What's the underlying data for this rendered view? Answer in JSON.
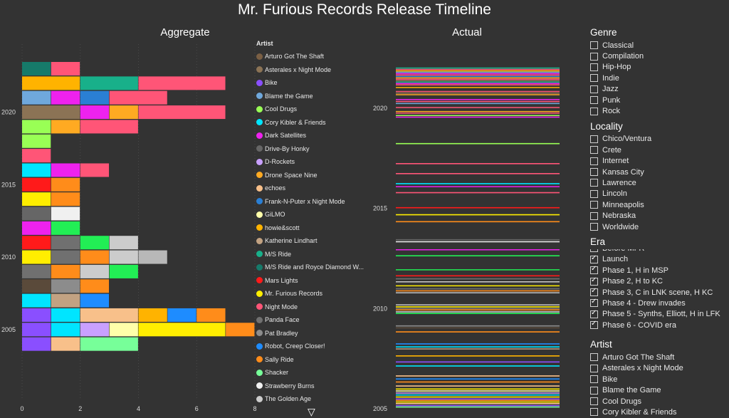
{
  "title": "Mr. Furious Records Release Timeline",
  "aggregate_title": "Aggregate",
  "actual_title": "Actual",
  "legend": {
    "title": "Artist",
    "items": [
      {
        "label": "Arturo Got The Shaft",
        "color": "#7a5f44"
      },
      {
        "label": "Asterales x Night Mode",
        "color": "#8b7355"
      },
      {
        "label": "Bike",
        "color": "#8a4fff"
      },
      {
        "label": "Blame the Game",
        "color": "#6fa8dc"
      },
      {
        "label": "Cool Drugs",
        "color": "#99ff55"
      },
      {
        "label": "Cory Kibler & Friends",
        "color": "#00e5ff"
      },
      {
        "label": "Dark Satellites",
        "color": "#ee22ee"
      },
      {
        "label": "Drive-By Honky",
        "color": "#666666"
      },
      {
        "label": "D-Rockets",
        "color": "#c9a0ff"
      },
      {
        "label": "Drone Space Nine",
        "color": "#ffaa22"
      },
      {
        "label": "echoes",
        "color": "#f8c08a"
      },
      {
        "label": "Frank-N-Puter x Night Mode",
        "color": "#2a7fd4"
      },
      {
        "label": "GiLMO",
        "color": "#ffffaa"
      },
      {
        "label": "howie&scott",
        "color": "#ffb300"
      },
      {
        "label": "Katherine Lindhart",
        "color": "#c2a282"
      },
      {
        "label": "M/S Ride",
        "color": "#18b08a"
      },
      {
        "label": "M/S Ride and Royce Diamond W...",
        "color": "#167a6a"
      },
      {
        "label": "Mars Lights",
        "color": "#ff1a1a"
      },
      {
        "label": "Mr. Furious Records",
        "color": "#ffee00"
      },
      {
        "label": "Night Mode",
        "color": "#ff5577"
      },
      {
        "label": "Panda Face",
        "color": "#707070"
      },
      {
        "label": "Pat Bradley",
        "color": "#8c8c8c"
      },
      {
        "label": "Robot, Creep Closer!",
        "color": "#1e8cff"
      },
      {
        "label": "Sally Ride",
        "color": "#ff8c1a"
      },
      {
        "label": "Shacker",
        "color": "#77ff99"
      },
      {
        "label": "Strawberry Burns",
        "color": "#f0f0f0"
      },
      {
        "label": "The Golden Age",
        "color": "#cccccc"
      }
    ]
  },
  "chart_data": [
    {
      "type": "bar",
      "title": "Aggregate",
      "orientation": "horizontal",
      "stacked": true,
      "x_ticks": [
        "0",
        "2",
        "4",
        "6",
        "8"
      ],
      "xlim": [
        0,
        8
      ],
      "y_ticks": [
        "2005",
        "2010",
        "2015",
        "2020"
      ],
      "rows": [
        {
          "segments": [
            {
              "v": 1,
              "c": "#167a6a"
            },
            {
              "v": 1,
              "c": "#ff5577"
            }
          ]
        },
        {
          "segments": [
            {
              "v": 2,
              "c": "#ffb300"
            },
            {
              "v": 2,
              "c": "#18b08a"
            },
            {
              "v": 3,
              "c": "#ff5577"
            }
          ]
        },
        {
          "segments": [
            {
              "v": 1,
              "c": "#6fa8dc"
            },
            {
              "v": 1,
              "c": "#ee22ee"
            },
            {
              "v": 1,
              "c": "#2a7fd4"
            },
            {
              "v": 2,
              "c": "#ff5577"
            }
          ]
        },
        {
          "label": "2020",
          "segments": [
            {
              "v": 2,
              "c": "#8b7355"
            },
            {
              "v": 1,
              "c": "#ee22ee"
            },
            {
              "v": 1,
              "c": "#ffaa22"
            },
            {
              "v": 3,
              "c": "#ff5577"
            }
          ]
        },
        {
          "segments": [
            {
              "v": 1,
              "c": "#99ff55"
            },
            {
              "v": 1,
              "c": "#ffaa22"
            },
            {
              "v": 2,
              "c": "#ff5577"
            }
          ]
        },
        {
          "segments": [
            {
              "v": 1,
              "c": "#99ff55"
            }
          ]
        },
        {
          "segments": [
            {
              "v": 1,
              "c": "#ff5577"
            }
          ]
        },
        {
          "segments": [
            {
              "v": 1,
              "c": "#00e5ff"
            },
            {
              "v": 1,
              "c": "#ee22ee"
            },
            {
              "v": 1,
              "c": "#ff5577"
            }
          ]
        },
        {
          "label": "2015",
          "segments": [
            {
              "v": 1,
              "c": "#ff1a1a"
            },
            {
              "v": 1,
              "c": "#ff8c1a"
            }
          ]
        },
        {
          "segments": [
            {
              "v": 1,
              "c": "#ffee00"
            },
            {
              "v": 1,
              "c": "#ff8c1a"
            }
          ]
        },
        {
          "segments": [
            {
              "v": 1,
              "c": "#666666"
            },
            {
              "v": 1,
              "c": "#f0f0f0"
            }
          ]
        },
        {
          "segments": [
            {
              "v": 1,
              "c": "#ee22ee"
            },
            {
              "v": 1,
              "c": "#22ee55"
            }
          ]
        },
        {
          "segments": [
            {
              "v": 1,
              "c": "#ff1a1a"
            },
            {
              "v": 1,
              "c": "#707070"
            },
            {
              "v": 1,
              "c": "#22ee55"
            },
            {
              "v": 1,
              "c": "#cccccc"
            }
          ]
        },
        {
          "label": "2010",
          "segments": [
            {
              "v": 1,
              "c": "#ffee00"
            },
            {
              "v": 1,
              "c": "#707070"
            },
            {
              "v": 1,
              "c": "#ff8c1a"
            },
            {
              "v": 1,
              "c": "#cccccc"
            },
            {
              "v": 1,
              "c": "#b8b8b8"
            }
          ]
        },
        {
          "segments": [
            {
              "v": 1,
              "c": "#707070"
            },
            {
              "v": 1,
              "c": "#ff8c1a"
            },
            {
              "v": 1,
              "c": "#cccccc"
            },
            {
              "v": 1,
              "c": "#22ee55"
            }
          ]
        },
        {
          "segments": [
            {
              "v": 1,
              "c": "#5a4a3a"
            },
            {
              "v": 1,
              "c": "#8c8c8c"
            },
            {
              "v": 1,
              "c": "#ff8c1a"
            }
          ]
        },
        {
          "segments": [
            {
              "v": 1,
              "c": "#00e5ff"
            },
            {
              "v": 1,
              "c": "#c2a282"
            },
            {
              "v": 1,
              "c": "#1e8cff"
            }
          ]
        },
        {
          "segments": [
            {
              "v": 1,
              "c": "#8a4fff"
            },
            {
              "v": 1,
              "c": "#00e5ff"
            },
            {
              "v": 2,
              "c": "#f8c08a"
            },
            {
              "v": 1,
              "c": "#ffb300"
            },
            {
              "v": 1,
              "c": "#1e8cff"
            },
            {
              "v": 1,
              "c": "#ff8c1a"
            }
          ]
        },
        {
          "label": "2005",
          "segments": [
            {
              "v": 1,
              "c": "#8a4fff"
            },
            {
              "v": 1,
              "c": "#00e5ff"
            },
            {
              "v": 1,
              "c": "#c9a0ff"
            },
            {
              "v": 1,
              "c": "#ffffaa"
            },
            {
              "v": 3,
              "c": "#ffee00"
            },
            {
              "v": 1,
              "c": "#ff8c1a"
            }
          ]
        },
        {
          "segments": [
            {
              "v": 1,
              "c": "#8a4fff"
            },
            {
              "v": 1,
              "c": "#f8c08a"
            },
            {
              "v": 2,
              "c": "#77ff99"
            }
          ]
        }
      ]
    },
    {
      "type": "line",
      "title": "Actual",
      "y_ticks": [
        "2005",
        "2010",
        "2015",
        "2020"
      ],
      "ylim": [
        2004.9,
        2022.2
      ],
      "releases": [
        {
          "y": 2021.97,
          "c": "#18b08a"
        },
        {
          "y": 2021.9,
          "c": "#ff5577"
        },
        {
          "y": 2021.83,
          "c": "#ffb300"
        },
        {
          "y": 2021.76,
          "c": "#6fa8dc"
        },
        {
          "y": 2021.69,
          "c": "#ee22ee"
        },
        {
          "y": 2021.62,
          "c": "#ff5577"
        },
        {
          "y": 2021.55,
          "c": "#2a7fd4"
        },
        {
          "y": 2021.48,
          "c": "#ffaa22"
        },
        {
          "y": 2021.41,
          "c": "#ff5577"
        },
        {
          "y": 2021.34,
          "c": "#8b7355"
        },
        {
          "y": 2021.27,
          "c": "#18b08a"
        },
        {
          "y": 2021.2,
          "c": "#ee22ee"
        },
        {
          "y": 2021.13,
          "c": "#ff5577"
        },
        {
          "y": 2021.0,
          "c": "#ffb300"
        },
        {
          "y": 2020.8,
          "c": "#ff5577"
        },
        {
          "y": 2020.72,
          "c": "#8b7355"
        },
        {
          "y": 2020.64,
          "c": "#ffaa22"
        },
        {
          "y": 2020.4,
          "c": "#ee22ee"
        },
        {
          "y": 2020.3,
          "c": "#ff5577"
        },
        {
          "y": 2020.2,
          "c": "#6fa8dc"
        },
        {
          "y": 2020.0,
          "c": "#ff5577"
        },
        {
          "y": 2019.8,
          "c": "#ffaa22"
        },
        {
          "y": 2019.72,
          "c": "#ff5577"
        },
        {
          "y": 2019.6,
          "c": "#99ff55"
        },
        {
          "y": 2019.52,
          "c": "#ee22ee"
        },
        {
          "y": 2018.2,
          "c": "#99ff55"
        },
        {
          "y": 2017.2,
          "c": "#ff5577"
        },
        {
          "y": 2016.7,
          "c": "#ff5577"
        },
        {
          "y": 2016.2,
          "c": "#00e5ff"
        },
        {
          "y": 2016.05,
          "c": "#ee22ee"
        },
        {
          "y": 2015.75,
          "c": "#ff5577"
        },
        {
          "y": 2015.0,
          "c": "#ff1a1a"
        },
        {
          "y": 2014.65,
          "c": "#ffee00"
        },
        {
          "y": 2014.3,
          "c": "#ff8c1a"
        },
        {
          "y": 2013.4,
          "c": "#666666"
        },
        {
          "y": 2013.3,
          "c": "#f0f0f0"
        },
        {
          "y": 2012.9,
          "c": "#ee22ee"
        },
        {
          "y": 2012.6,
          "c": "#22ee55"
        },
        {
          "y": 2011.9,
          "c": "#22ee55"
        },
        {
          "y": 2011.6,
          "c": "#ff1a1a"
        },
        {
          "y": 2011.45,
          "c": "#707070"
        },
        {
          "y": 2011.3,
          "c": "#cccccc"
        },
        {
          "y": 2011.1,
          "c": "#ffee00"
        },
        {
          "y": 2010.95,
          "c": "#707070"
        },
        {
          "y": 2010.85,
          "c": "#ff8c1a"
        },
        {
          "y": 2010.75,
          "c": "#b8b8b8"
        },
        {
          "y": 2010.15,
          "c": "#cccccc"
        },
        {
          "y": 2010.05,
          "c": "#ffee00"
        },
        {
          "y": 2009.97,
          "c": "#707070"
        },
        {
          "y": 2009.9,
          "c": "#ff8c1a"
        },
        {
          "y": 2009.8,
          "c": "#cccccc"
        },
        {
          "y": 2009.72,
          "c": "#22ee55"
        },
        {
          "y": 2009.1,
          "c": "#8c8c8c"
        },
        {
          "y": 2009.0,
          "c": "#5a4a3a"
        },
        {
          "y": 2008.8,
          "c": "#ff8c1a"
        },
        {
          "y": 2008.2,
          "c": "#1e8cff"
        },
        {
          "y": 2008.05,
          "c": "#00e5ff"
        },
        {
          "y": 2007.95,
          "c": "#c2a282"
        },
        {
          "y": 2007.6,
          "c": "#ffb300"
        },
        {
          "y": 2007.3,
          "c": "#8a4fff"
        },
        {
          "y": 2007.1,
          "c": "#00e5ff"
        },
        {
          "y": 2006.6,
          "c": "#f8c08a"
        },
        {
          "y": 2006.45,
          "c": "#1e8cff"
        },
        {
          "y": 2006.3,
          "c": "#ff8c1a"
        },
        {
          "y": 2006.1,
          "c": "#f8c08a"
        },
        {
          "y": 2005.95,
          "c": "#ffee00"
        },
        {
          "y": 2005.85,
          "c": "#ffffaa"
        },
        {
          "y": 2005.75,
          "c": "#c9a0ff"
        },
        {
          "y": 2005.65,
          "c": "#00e5ff"
        },
        {
          "y": 2005.55,
          "c": "#ffee00"
        },
        {
          "y": 2005.45,
          "c": "#8a4fff"
        },
        {
          "y": 2005.38,
          "c": "#ff8c1a"
        },
        {
          "y": 2005.3,
          "c": "#ffee00"
        },
        {
          "y": 2005.22,
          "c": "#f8c08a"
        },
        {
          "y": 2005.12,
          "c": "#8a4fff"
        },
        {
          "y": 2005.05,
          "c": "#77ff99"
        }
      ]
    }
  ],
  "filters": {
    "genre": {
      "title": "Genre",
      "items": [
        {
          "label": "Classical",
          "checked": false
        },
        {
          "label": "Compilation",
          "checked": false
        },
        {
          "label": "Hip-Hop",
          "checked": false
        },
        {
          "label": "Indie",
          "checked": false
        },
        {
          "label": "Jazz",
          "checked": false
        },
        {
          "label": "Punk",
          "checked": false
        },
        {
          "label": "Rock",
          "checked": false
        }
      ]
    },
    "locality": {
      "title": "Locality",
      "items": [
        {
          "label": "Chico/Ventura",
          "checked": false
        },
        {
          "label": "Crete",
          "checked": false
        },
        {
          "label": "Internet",
          "checked": false
        },
        {
          "label": "Kansas City",
          "checked": false
        },
        {
          "label": "Lawrence",
          "checked": false
        },
        {
          "label": "Lincoln",
          "checked": false
        },
        {
          "label": "Minneapolis",
          "checked": false
        },
        {
          "label": "Nebraska",
          "checked": false
        },
        {
          "label": "Worldwide",
          "checked": false
        }
      ]
    },
    "era": {
      "title": "Era",
      "items": [
        {
          "label": "Before MFR",
          "checked": true
        },
        {
          "label": "Launch",
          "checked": true
        },
        {
          "label": "Phase 1, H in MSP",
          "checked": true
        },
        {
          "label": "Phase 2, H to KC",
          "checked": true
        },
        {
          "label": "Phase 3, C in LNK scene, H KC",
          "checked": true
        },
        {
          "label": "Phase 4 - Drew invades",
          "checked": true
        },
        {
          "label": "Phase 5 - Synths, Elliott, H in LFK",
          "checked": true
        },
        {
          "label": "Phase 6 - COVID era",
          "checked": true
        }
      ]
    },
    "artist": {
      "title": "Artist",
      "items": [
        {
          "label": "Arturo Got The Shaft",
          "checked": false
        },
        {
          "label": "Asterales x Night Mode",
          "checked": false
        },
        {
          "label": "Bike",
          "checked": false
        },
        {
          "label": "Blame the Game",
          "checked": false
        },
        {
          "label": "Cool Drugs",
          "checked": false
        },
        {
          "label": "Cory Kibler & Friends",
          "checked": false
        }
      ]
    }
  }
}
